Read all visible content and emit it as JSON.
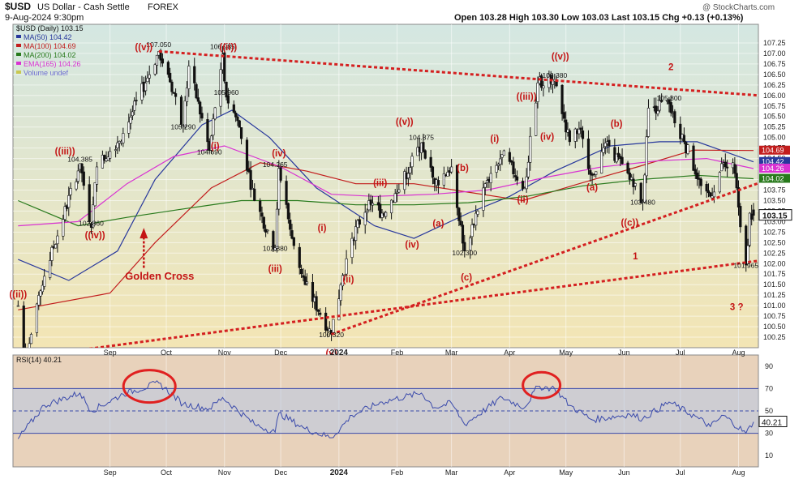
{
  "header": {
    "symbol": "$USD",
    "name": "US Dollar - Cash Settle",
    "exchange": "FOREX",
    "date_time": "9-Aug-2024 9:30pm",
    "ohlc": "Open 103.28  High 103.30  Low 103.03  Last 103.15  Chg +0.13 (+0.13%)",
    "watermark": "@ StockCharts.com"
  },
  "legend": {
    "main": "$USD (Daily) 103.15",
    "ma50": "MA(50) 104.42",
    "ma100": "MA(100) 104.69",
    "ma200": "MA(200) 104.02",
    "ema165": "EMA(165) 104.26",
    "volume": "Volume undef",
    "rsi": "RSI(14) 40.21"
  },
  "price_labels": [
    {
      "text": "107.050",
      "date": "2023-09-27",
      "price": 107.15
    },
    {
      "text": "106.985",
      "date": "2023-10-31",
      "price": 107.1
    },
    {
      "text": "105.960",
      "date": "2023-11-02",
      "price": 106.02
    },
    {
      "text": "105.290",
      "date": "2023-10-10",
      "price": 105.2
    },
    {
      "text": "104.690",
      "date": "2023-10-24",
      "price": 104.6
    },
    {
      "text": "104.385",
      "date": "2023-08-16",
      "price": 104.42
    },
    {
      "text": "102.860",
      "date": "2023-08-22",
      "price": 102.9
    },
    {
      "text": "104.265",
      "date": "2023-11-28",
      "price": 104.3
    },
    {
      "text": "102.380",
      "date": "2023-11-28",
      "price": 102.3
    },
    {
      "text": "100.320",
      "date": "2023-12-28",
      "price": 100.25
    },
    {
      "text": "104.875",
      "date": "2024-02-14",
      "price": 104.95
    },
    {
      "text": "102.300",
      "date": "2024-03-08",
      "price": 102.2
    },
    {
      "text": "106.380",
      "date": "2024-04-25",
      "price": 106.42
    },
    {
      "text": "105.800",
      "date": "2024-06-25",
      "price": 105.88
    },
    {
      "text": "103.480",
      "date": "2024-06-11",
      "price": 103.4
    },
    {
      "text": "101.965",
      "date": "2024-08-05",
      "price": 101.9
    }
  ],
  "wave_labels": [
    {
      "text": "((v))",
      "date": "2023-09-19",
      "price": 107.08
    },
    {
      "text": "((ii))",
      "date": "2023-11-03",
      "price": 107.08
    },
    {
      "text": "((iii))",
      "date": "2023-08-08",
      "price": 104.6
    },
    {
      "text": "((iv))",
      "date": "2023-08-24",
      "price": 102.6
    },
    {
      "text": "((ii))",
      "date": "2023-07-14",
      "price": 101.2
    },
    {
      "text": "(i)",
      "date": "2023-10-27",
      "price": 104.72
    },
    {
      "text": "(iv)",
      "date": "2023-11-30",
      "price": 104.55
    },
    {
      "text": "(iii)",
      "date": "2023-11-28",
      "price": 101.8
    },
    {
      "text": "(i)",
      "date": "2023-12-23",
      "price": 102.78
    },
    {
      "text": "(ii)",
      "date": "2024-01-06",
      "price": 101.55
    },
    {
      "text": "(v)",
      "date": "2023-12-28",
      "price": 99.8
    },
    {
      "text": "(iii)",
      "date": "2024-01-23",
      "price": 103.85
    },
    {
      "text": "((v))",
      "date": "2024-02-05",
      "price": 105.3
    },
    {
      "text": "(iv)",
      "date": "2024-02-09",
      "price": 102.38
    },
    {
      "text": "(a)",
      "date": "2024-02-23",
      "price": 102.88
    },
    {
      "text": "(b)",
      "date": "2024-03-07",
      "price": 104.2
    },
    {
      "text": "(c)",
      "date": "2024-03-09",
      "price": 101.6
    },
    {
      "text": "(i)",
      "date": "2024-03-24",
      "price": 104.9
    },
    {
      "text": "((iii))",
      "date": "2024-04-10",
      "price": 105.9
    },
    {
      "text": "(ii)",
      "date": "2024-04-08",
      "price": 103.45
    },
    {
      "text": "(iv)",
      "date": "2024-04-21",
      "price": 104.95
    },
    {
      "text": "((v))",
      "date": "2024-04-28",
      "price": 106.85
    },
    {
      "text": "(b)",
      "date": "2024-05-28",
      "price": 105.25
    },
    {
      "text": "(a)",
      "date": "2024-05-15",
      "price": 103.74
    },
    {
      "text": "((c))",
      "date": "2024-06-04",
      "price": 102.9
    },
    {
      "text": "2",
      "date": "2024-06-26",
      "price": 106.6
    },
    {
      "text": "1",
      "date": "2024-06-07",
      "price": 102.1
    },
    {
      "text": "3 ?",
      "date": "2024-07-31",
      "price": 100.9
    }
  ],
  "annotation": {
    "text": "Golden Cross",
    "date": "2023-09-09",
    "price": 101.62,
    "arrow_date": "2023-09-19"
  },
  "colors": {
    "price_bg_top": "#d4e7e2",
    "price_bg_bottom": "#f3e5b4",
    "rsi_bg": "#e8d2bb",
    "ma50": "#28389c",
    "ma100": "#c21d1d",
    "ma200": "#287a1c",
    "ema165": "#d932d2",
    "rsi_line": "#3a4aab",
    "wave_text": "#c41515",
    "trend": "#d42020",
    "circle": "#e02020"
  },
  "rsi_labels": [
    "90",
    "70",
    "50",
    "30",
    "10"
  ],
  "chart_data": {
    "type": "candlestick",
    "title": "$USD US Dollar - Cash Settle FOREX",
    "x_type": "date",
    "x_range": [
      "2023-07-13",
      "2024-08-09"
    ],
    "y_range": [
      100.0,
      107.5
    ],
    "y_ticks": [
      100.25,
      100.5,
      100.75,
      101,
      101.25,
      101.5,
      101.75,
      102,
      102.25,
      102.5,
      102.75,
      103,
      103.25,
      103.5,
      103.75,
      104,
      104.25,
      104.5,
      104.75,
      105,
      105.25,
      105.5,
      105.75,
      106,
      106.25,
      106.5,
      106.75,
      107,
      107.25
    ],
    "y_tick_labels": [
      "100.25",
      "100.50",
      "100.75",
      "101.00",
      "101.25",
      "101.50",
      "101.75",
      "102.00",
      "102.25",
      "102.50",
      "102.75",
      "103.00",
      "103.25",
      "103.50",
      "103.75",
      "104.00",
      "104.25",
      "104.50",
      "104.75",
      "105.00",
      "105.25",
      "105.50",
      "105.75",
      "106.00",
      "106.25",
      "106.50",
      "106.75",
      "107.00",
      "107.25"
    ],
    "x_ticks": [
      {
        "label": "Sep",
        "date": "2023-09-01"
      },
      {
        "label": "Oct",
        "date": "2023-10-01"
      },
      {
        "label": "Nov",
        "date": "2023-11-01"
      },
      {
        "label": "Dec",
        "date": "2023-12-01"
      },
      {
        "label": "2024",
        "date": "2024-01-01"
      },
      {
        "label": "Feb",
        "date": "2024-02-01"
      },
      {
        "label": "Mar",
        "date": "2024-03-01"
      },
      {
        "label": "Apr",
        "date": "2024-04-01"
      },
      {
        "label": "May",
        "date": "2024-05-01"
      },
      {
        "label": "Jun",
        "date": "2024-06-01"
      },
      {
        "label": "Jul",
        "date": "2024-07-01"
      },
      {
        "label": "Aug",
        "date": "2024-08-01"
      }
    ],
    "pivots": [
      [
        "2023-07-14",
        101.0
      ],
      [
        "2023-07-18",
        99.7
      ],
      [
        "2023-07-28",
        101.7
      ],
      [
        "2023-08-16",
        104.38
      ],
      [
        "2023-08-22",
        102.86
      ],
      [
        "2023-08-25",
        104.3
      ],
      [
        "2023-09-08",
        105.1
      ],
      [
        "2023-09-27",
        107.05
      ],
      [
        "2023-10-02",
        106.5
      ],
      [
        "2023-10-10",
        105.29
      ],
      [
        "2023-10-13",
        106.7
      ],
      [
        "2023-10-24",
        104.69
      ],
      [
        "2023-10-31",
        106.985
      ],
      [
        "2023-11-02",
        105.96
      ],
      [
        "2023-11-08",
        105.4
      ],
      [
        "2023-11-17",
        103.5
      ],
      [
        "2023-11-28",
        102.38
      ],
      [
        "2023-11-30",
        104.265
      ],
      [
        "2023-12-07",
        102.6
      ],
      [
        "2023-12-14",
        101.5
      ],
      [
        "2023-12-28",
        100.32
      ],
      [
        "2024-01-02",
        101.5
      ],
      [
        "2024-01-08",
        102.6
      ],
      [
        "2024-01-17",
        103.5
      ],
      [
        "2024-01-24",
        103.2
      ],
      [
        "2024-02-01",
        103.7
      ],
      [
        "2024-02-14",
        104.875
      ],
      [
        "2024-02-21",
        103.9
      ],
      [
        "2024-03-01",
        104.3
      ],
      [
        "2024-03-08",
        102.3
      ],
      [
        "2024-03-19",
        103.9
      ],
      [
        "2024-03-28",
        104.6
      ],
      [
        "2024-04-09",
        103.8
      ],
      [
        "2024-04-16",
        106.3
      ],
      [
        "2024-04-25",
        106.38
      ],
      [
        "2024-05-03",
        104.9
      ],
      [
        "2024-05-08",
        105.2
      ],
      [
        "2024-05-15",
        104.1
      ],
      [
        "2024-05-23",
        104.9
      ],
      [
        "2024-06-04",
        104.0
      ],
      [
        "2024-06-11",
        103.48
      ],
      [
        "2024-06-14",
        105.7
      ],
      [
        "2024-06-25",
        105.8
      ],
      [
        "2024-07-03",
        104.9
      ],
      [
        "2024-07-11",
        104.0
      ],
      [
        "2024-07-17",
        103.6
      ],
      [
        "2024-07-24",
        104.4
      ],
      [
        "2024-07-29",
        104.4
      ],
      [
        "2024-08-05",
        101.965
      ],
      [
        "2024-08-07",
        103.2
      ],
      [
        "2024-08-09",
        103.15
      ]
    ],
    "last": {
      "open": 103.28,
      "high": 103.3,
      "low": 103.03,
      "close": 103.15
    },
    "moving_averages": [
      {
        "name": "MA(50)",
        "value": 104.42,
        "points": [
          [
            "2023-07-14",
            102.1
          ],
          [
            "2023-08-10",
            101.6
          ],
          [
            "2023-09-05",
            102.3
          ],
          [
            "2023-09-25",
            104.0
          ],
          [
            "2023-10-20",
            105.3
          ],
          [
            "2023-11-05",
            105.65
          ],
          [
            "2023-11-25",
            105.0
          ],
          [
            "2023-12-20",
            103.8
          ],
          [
            "2024-01-20",
            102.9
          ],
          [
            "2024-02-10",
            102.6
          ],
          [
            "2024-03-10",
            103.2
          ],
          [
            "2024-04-01",
            103.6
          ],
          [
            "2024-04-25",
            104.2
          ],
          [
            "2024-05-25",
            104.8
          ],
          [
            "2024-06-20",
            104.9
          ],
          [
            "2024-07-10",
            104.9
          ],
          [
            "2024-08-09",
            104.42
          ]
        ]
      },
      {
        "name": "MA(100)",
        "value": 104.69,
        "points": [
          [
            "2023-07-14",
            100.9
          ],
          [
            "2023-09-01",
            101.3
          ],
          [
            "2023-09-25",
            102.5
          ],
          [
            "2023-10-25",
            103.8
          ],
          [
            "2023-11-20",
            104.4
          ],
          [
            "2023-12-15",
            104.2
          ],
          [
            "2024-01-10",
            103.9
          ],
          [
            "2024-02-10",
            103.9
          ],
          [
            "2024-03-10",
            103.7
          ],
          [
            "2024-04-08",
            103.5
          ],
          [
            "2024-05-08",
            103.9
          ],
          [
            "2024-06-08",
            104.3
          ],
          [
            "2024-07-08",
            104.7
          ],
          [
            "2024-08-09",
            104.69
          ]
        ]
      },
      {
        "name": "MA(200)",
        "value": 104.02,
        "points": [
          [
            "2023-07-14",
            103.5
          ],
          [
            "2023-08-15",
            102.9
          ],
          [
            "2023-09-10",
            103.1
          ],
          [
            "2023-10-10",
            103.3
          ],
          [
            "2023-11-10",
            103.5
          ],
          [
            "2023-12-10",
            103.5
          ],
          [
            "2024-01-10",
            103.4
          ],
          [
            "2024-02-10",
            103.4
          ],
          [
            "2024-03-10",
            103.45
          ],
          [
            "2024-04-10",
            103.6
          ],
          [
            "2024-05-10",
            103.85
          ],
          [
            "2024-06-10",
            104.0
          ],
          [
            "2024-07-10",
            104.1
          ],
          [
            "2024-08-09",
            104.02
          ]
        ]
      },
      {
        "name": "EMA(165)",
        "value": 104.26,
        "points": [
          [
            "2023-07-14",
            102.9
          ],
          [
            "2023-08-15",
            103.0
          ],
          [
            "2023-09-10",
            103.9
          ],
          [
            "2023-10-05",
            104.55
          ],
          [
            "2023-11-01",
            104.8
          ],
          [
            "2023-12-01",
            104.3
          ],
          [
            "2023-12-28",
            103.65
          ],
          [
            "2024-01-20",
            103.6
          ],
          [
            "2024-02-20",
            103.65
          ],
          [
            "2024-03-20",
            103.75
          ],
          [
            "2024-04-20",
            104.05
          ],
          [
            "2024-05-20",
            104.3
          ],
          [
            "2024-06-20",
            104.45
          ],
          [
            "2024-07-15",
            104.5
          ],
          [
            "2024-08-09",
            104.26
          ]
        ]
      }
    ],
    "trendlines": [
      {
        "from": [
          "2023-09-27",
          107.05
        ],
        "to": [
          "2024-08-12",
          106.0
        ]
      },
      {
        "from": [
          "2023-12-28",
          100.32
        ],
        "to": [
          "2024-08-12",
          103.92
        ]
      },
      {
        "from": [
          "2023-06-01",
          99.5
        ],
        "to": [
          "2024-08-12",
          102.07
        ]
      }
    ],
    "rsi": {
      "name": "RSI(14)",
      "value": 40.21,
      "y_range": [
        0,
        100
      ],
      "ticks": [
        90,
        70,
        50,
        30,
        10
      ],
      "levels": [
        70,
        50,
        30
      ],
      "points": [
        [
          "2023-07-14",
          25
        ],
        [
          "2023-07-28",
          55
        ],
        [
          "2023-08-16",
          66
        ],
        [
          "2023-08-22",
          50
        ],
        [
          "2023-09-08",
          65
        ],
        [
          "2023-09-27",
          75
        ],
        [
          "2023-10-10",
          56
        ],
        [
          "2023-10-24",
          52
        ],
        [
          "2023-10-31",
          62
        ],
        [
          "2023-11-17",
          38
        ],
        [
          "2023-11-28",
          31
        ],
        [
          "2023-11-30",
          48
        ],
        [
          "2023-12-14",
          34
        ],
        [
          "2023-12-28",
          26
        ],
        [
          "2024-01-08",
          46
        ],
        [
          "2024-01-24",
          58
        ],
        [
          "2024-02-14",
          66
        ],
        [
          "2024-02-21",
          53
        ],
        [
          "2024-03-01",
          57
        ],
        [
          "2024-03-08",
          38
        ],
        [
          "2024-03-28",
          62
        ],
        [
          "2024-04-09",
          53
        ],
        [
          "2024-04-16",
          72
        ],
        [
          "2024-04-25",
          70
        ],
        [
          "2024-05-03",
          55
        ],
        [
          "2024-05-15",
          42
        ],
        [
          "2024-06-04",
          47
        ],
        [
          "2024-06-11",
          43
        ],
        [
          "2024-06-25",
          58
        ],
        [
          "2024-07-11",
          43
        ],
        [
          "2024-07-17",
          36
        ],
        [
          "2024-07-24",
          46
        ],
        [
          "2024-08-05",
          30
        ],
        [
          "2024-08-09",
          40.21
        ]
      ]
    }
  }
}
